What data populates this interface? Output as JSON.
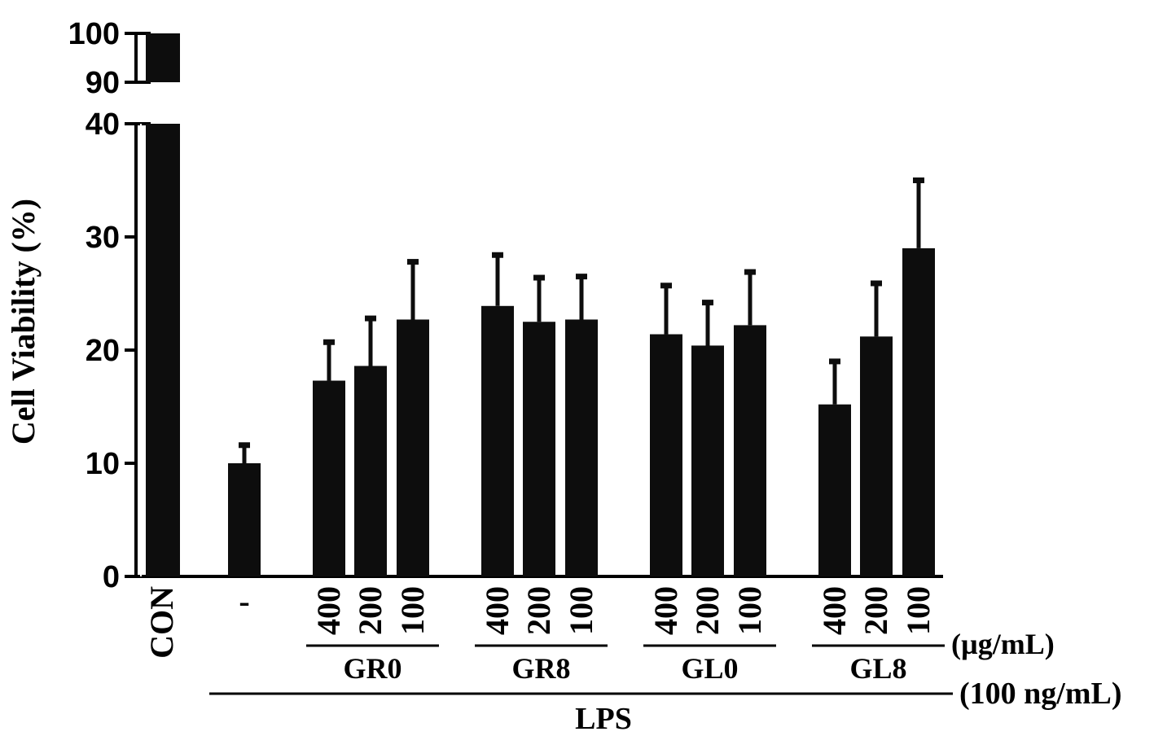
{
  "chart_data": {
    "type": "bar",
    "ylabel": "Cell Viability (%)",
    "yaxis_break": [
      40,
      90
    ],
    "ylim": [
      0,
      100
    ],
    "yticks": [
      "0",
      "10",
      "20",
      "30",
      "40",
      "90",
      "100"
    ],
    "bar_color": "#0d0d0d",
    "categories": [
      {
        "label": "CON",
        "value": 100,
        "error": 0
      },
      {
        "label": "-",
        "value": 10.0,
        "error": 1.6
      },
      {
        "label": "400",
        "value": 17.3,
        "error": 3.4
      },
      {
        "label": "200",
        "value": 18.6,
        "error": 4.2
      },
      {
        "label": "100",
        "value": 22.7,
        "error": 5.1
      },
      {
        "label": "400",
        "value": 23.9,
        "error": 4.5
      },
      {
        "label": "200",
        "value": 22.5,
        "error": 3.9
      },
      {
        "label": "100",
        "value": 22.7,
        "error": 3.8
      },
      {
        "label": "400",
        "value": 21.4,
        "error": 4.3
      },
      {
        "label": "200",
        "value": 20.4,
        "error": 3.8
      },
      {
        "label": "100",
        "value": 22.2,
        "error": 4.7
      },
      {
        "label": "400",
        "value": 15.2,
        "error": 3.8
      },
      {
        "label": "200",
        "value": 21.2,
        "error": 4.7
      },
      {
        "label": "100",
        "value": 29.0,
        "error": 6.0
      }
    ],
    "groups": [
      {
        "label": "GR0",
        "members": [
          2,
          3,
          4
        ]
      },
      {
        "label": "GR8",
        "members": [
          5,
          6,
          7
        ]
      },
      {
        "label": "GL0",
        "members": [
          8,
          9,
          10
        ]
      },
      {
        "label": "GL8",
        "members": [
          11,
          12,
          13
        ]
      }
    ],
    "concentration_unit": "(µg/mL)",
    "treatment": {
      "label": "LPS",
      "unit": "(100 ng/mL)",
      "members": [
        1,
        13
      ]
    }
  }
}
